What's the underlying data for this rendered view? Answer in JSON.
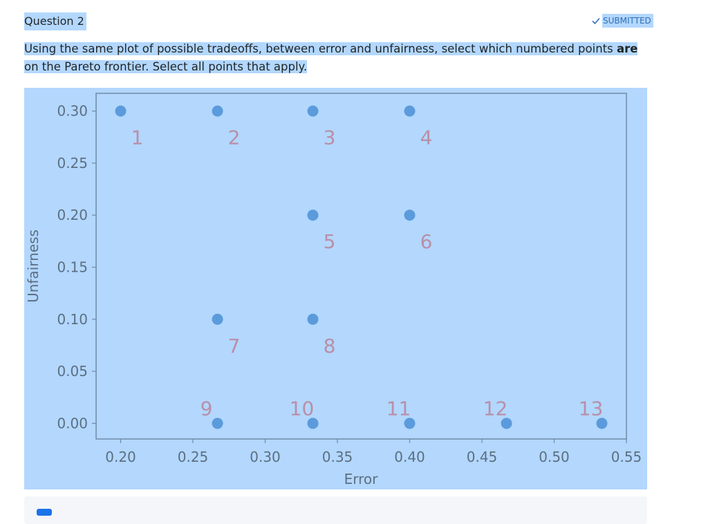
{
  "question": {
    "title": "Question 2",
    "status": "SUBMITTED",
    "status_icon": "check-icon",
    "text_before": "Using the same plot of possible tradeoffs, between error and unfairness, select which numbered points ",
    "text_bold": "are",
    "text_after": " on the Pareto frontier. Select all points that apply."
  },
  "colors": {
    "highlight": "#b3d7fd",
    "point": "#5b9bdc",
    "point_label": "#b98fa8",
    "status": "#2f6fb5"
  },
  "chart_data": {
    "type": "scatter",
    "xlabel": "Error",
    "ylabel": "Unfairness",
    "xlim": [
      0.183,
      0.55
    ],
    "ylim": [
      -0.015,
      0.317
    ],
    "xticks": [
      0.2,
      0.25,
      0.3,
      0.35,
      0.4,
      0.45,
      0.5,
      0.55
    ],
    "yticks": [
      0.0,
      0.05,
      0.1,
      0.15,
      0.2,
      0.25,
      0.3
    ],
    "xtick_labels": [
      "0.20",
      "0.25",
      "0.30",
      "0.35",
      "0.40",
      "0.45",
      "0.50",
      "0.55"
    ],
    "ytick_labels": [
      "0.00",
      "0.05",
      "0.10",
      "0.15",
      "0.20",
      "0.25",
      "0.30"
    ],
    "grid": false,
    "points": [
      {
        "label": "1",
        "x": 0.2,
        "y": 0.3
      },
      {
        "label": "2",
        "x": 0.267,
        "y": 0.3
      },
      {
        "label": "3",
        "x": 0.333,
        "y": 0.3
      },
      {
        "label": "4",
        "x": 0.4,
        "y": 0.3
      },
      {
        "label": "5",
        "x": 0.333,
        "y": 0.2
      },
      {
        "label": "6",
        "x": 0.4,
        "y": 0.2
      },
      {
        "label": "7",
        "x": 0.267,
        "y": 0.1
      },
      {
        "label": "8",
        "x": 0.333,
        "y": 0.1
      },
      {
        "label": "9",
        "x": 0.267,
        "y": 0.0
      },
      {
        "label": "10",
        "x": 0.333,
        "y": 0.0
      },
      {
        "label": "11",
        "x": 0.4,
        "y": 0.0
      },
      {
        "label": "12",
        "x": 0.467,
        "y": 0.0
      },
      {
        "label": "13",
        "x": 0.533,
        "y": 0.0
      }
    ]
  }
}
